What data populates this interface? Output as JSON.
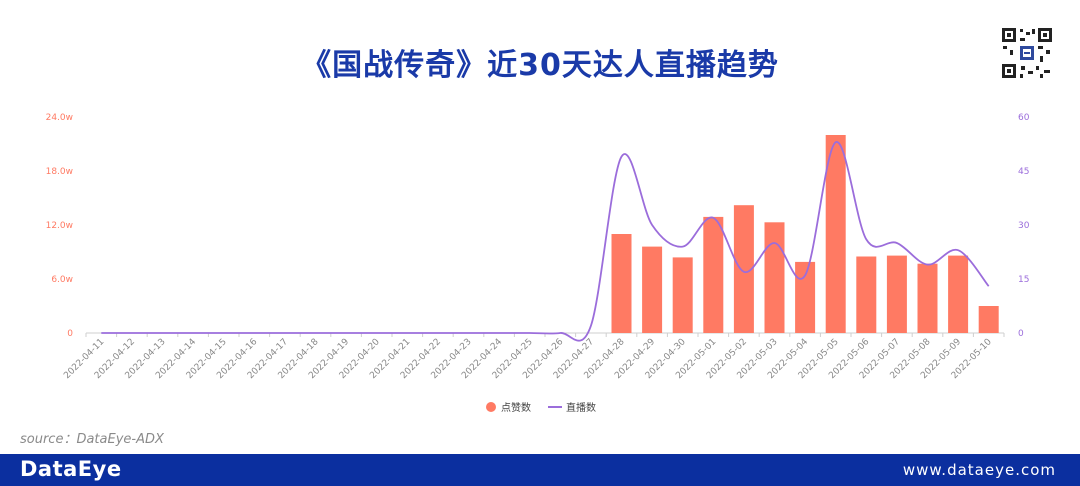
{
  "header": {
    "title": "《国战传奇》近30天达人直播趋势"
  },
  "source": "source：DataEye-ADX",
  "footer": {
    "brand": "DataEye",
    "site": "www.dataeye.com"
  },
  "colors": {
    "bar": "#ff7a63",
    "line": "#9b6ddb",
    "title": "#1a3aa8",
    "footer_bg": "#0b2f9f"
  },
  "chart_data": {
    "type": "bar",
    "categories": [
      "2022-04-11",
      "2022-04-12",
      "2022-04-13",
      "2022-04-14",
      "2022-04-15",
      "2022-04-16",
      "2022-04-17",
      "2022-04-18",
      "2022-04-19",
      "2022-04-20",
      "2022-04-21",
      "2022-04-22",
      "2022-04-23",
      "2022-04-24",
      "2022-04-25",
      "2022-04-26",
      "2022-04-27",
      "2022-04-28",
      "2022-04-29",
      "2022-04-30",
      "2022-05-01",
      "2022-05-02",
      "2022-05-03",
      "2022-05-04",
      "2022-05-05",
      "2022-05-06",
      "2022-05-07",
      "2022-05-08",
      "2022-05-09",
      "2022-05-10"
    ],
    "series": [
      {
        "name": "点赞数",
        "type": "bar",
        "axis": "left",
        "unit": "w",
        "values": [
          0,
          0,
          0,
          0,
          0,
          0,
          0,
          0,
          0,
          0,
          0,
          0,
          0,
          0,
          0,
          0,
          0,
          11.0,
          9.6,
          8.4,
          12.9,
          14.2,
          12.3,
          7.9,
          22.0,
          8.5,
          8.6,
          7.7,
          8.6,
          3.0
        ]
      },
      {
        "name": "直播数",
        "type": "line",
        "axis": "right",
        "smooth": true,
        "values": [
          0,
          0,
          0,
          0,
          0,
          0,
          0,
          0,
          0,
          0,
          0,
          0,
          0,
          0,
          0,
          0,
          2,
          49,
          30,
          24,
          32,
          17,
          25,
          16,
          53,
          26,
          25,
          19,
          23,
          13
        ]
      }
    ],
    "y_left": {
      "min": 0,
      "max": 24,
      "ticks": [
        "0",
        "6.0w",
        "12.0w",
        "18.0w",
        "24.0w"
      ]
    },
    "y_right": {
      "min": 0,
      "max": 60,
      "ticks": [
        "0",
        "15",
        "30",
        "45",
        "60"
      ]
    },
    "legend": {
      "placement": "bottom-center"
    },
    "grid": false
  }
}
